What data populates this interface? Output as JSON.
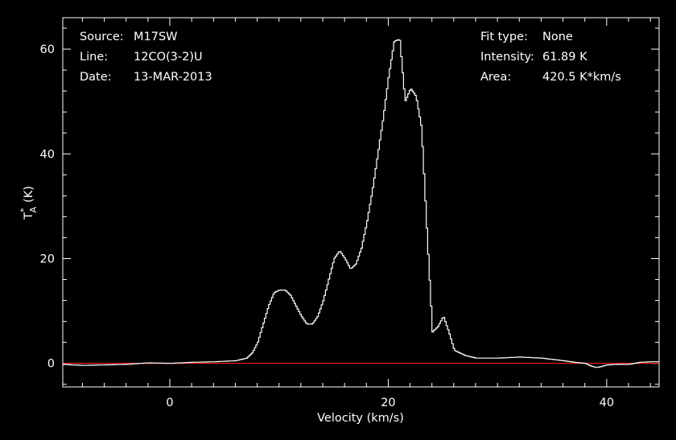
{
  "header_left": {
    "labels": [
      "Source:",
      "Line:",
      "Date:"
    ],
    "values": [
      "M17SW",
      "12CO(3-2)U",
      "13-MAR-2013"
    ]
  },
  "header_right": {
    "labels": [
      "Fit type:",
      "Intensity:",
      "Area:"
    ],
    "values": [
      "None",
      "61.89 K",
      "420.5 K*km/s"
    ]
  },
  "chart_data": {
    "type": "line",
    "xlabel": "Velocity (km/s)",
    "ylabel_main": "T",
    "ylabel_sup": "*",
    "ylabel_sub": "A",
    "ylabel_unit": "(K)",
    "xlim": [
      -9.8,
      44.8
    ],
    "ylim": [
      -4.5,
      66
    ],
    "x_ticks": [
      0,
      20,
      40
    ],
    "y_ticks": [
      0,
      20,
      40,
      60
    ],
    "x_tick_labels": [
      "0",
      "20",
      "40"
    ],
    "y_tick_labels": [
      "0",
      "20",
      "40",
      "60"
    ],
    "x_minor_step": 2,
    "y_minor_step": 4,
    "grid": false,
    "colors": {
      "spectrum": "#ffffff",
      "baseline": "#ff2020",
      "background": "#000000"
    },
    "baseline_value": 0,
    "series": [
      {
        "x": [
          -9.8,
          -8,
          -6,
          -4,
          -2,
          0,
          2,
          4,
          6,
          7,
          7.5,
          8,
          8.5,
          9,
          9.5,
          10,
          10.5,
          11,
          11.5,
          12,
          12.5,
          13,
          13.5,
          14,
          14.5,
          15,
          15.5,
          16,
          16.5,
          17,
          17.5,
          18,
          18.5,
          19,
          19.5,
          20,
          20.5,
          21,
          21.5,
          22,
          22.5,
          23,
          23.5,
          24,
          24.5,
          25,
          25.5,
          26,
          27,
          28,
          30,
          32,
          34,
          36,
          37,
          38,
          38.5,
          39,
          39.5,
          40,
          41,
          42,
          43,
          44,
          44.8
        ],
        "values": [
          -0.2,
          -0.4,
          -0.3,
          -0.2,
          0.1,
          0,
          0.2,
          0.3,
          0.5,
          1,
          2,
          4,
          7.5,
          11,
          13.5,
          14,
          14,
          13,
          11,
          9,
          7.5,
          7.5,
          9,
          12,
          16,
          20,
          21.5,
          20,
          18,
          19,
          22,
          27,
          33,
          40,
          47,
          55,
          61.5,
          61.9,
          50,
          52.5,
          51,
          45,
          25,
          6,
          7,
          9,
          6,
          2.5,
          1.5,
          1,
          1,
          1.2,
          1,
          0.5,
          0.2,
          0,
          -0.5,
          -0.8,
          -0.6,
          -0.3,
          -0.2,
          -0.2,
          0.2,
          0.3,
          0.3
        ]
      }
    ]
  }
}
